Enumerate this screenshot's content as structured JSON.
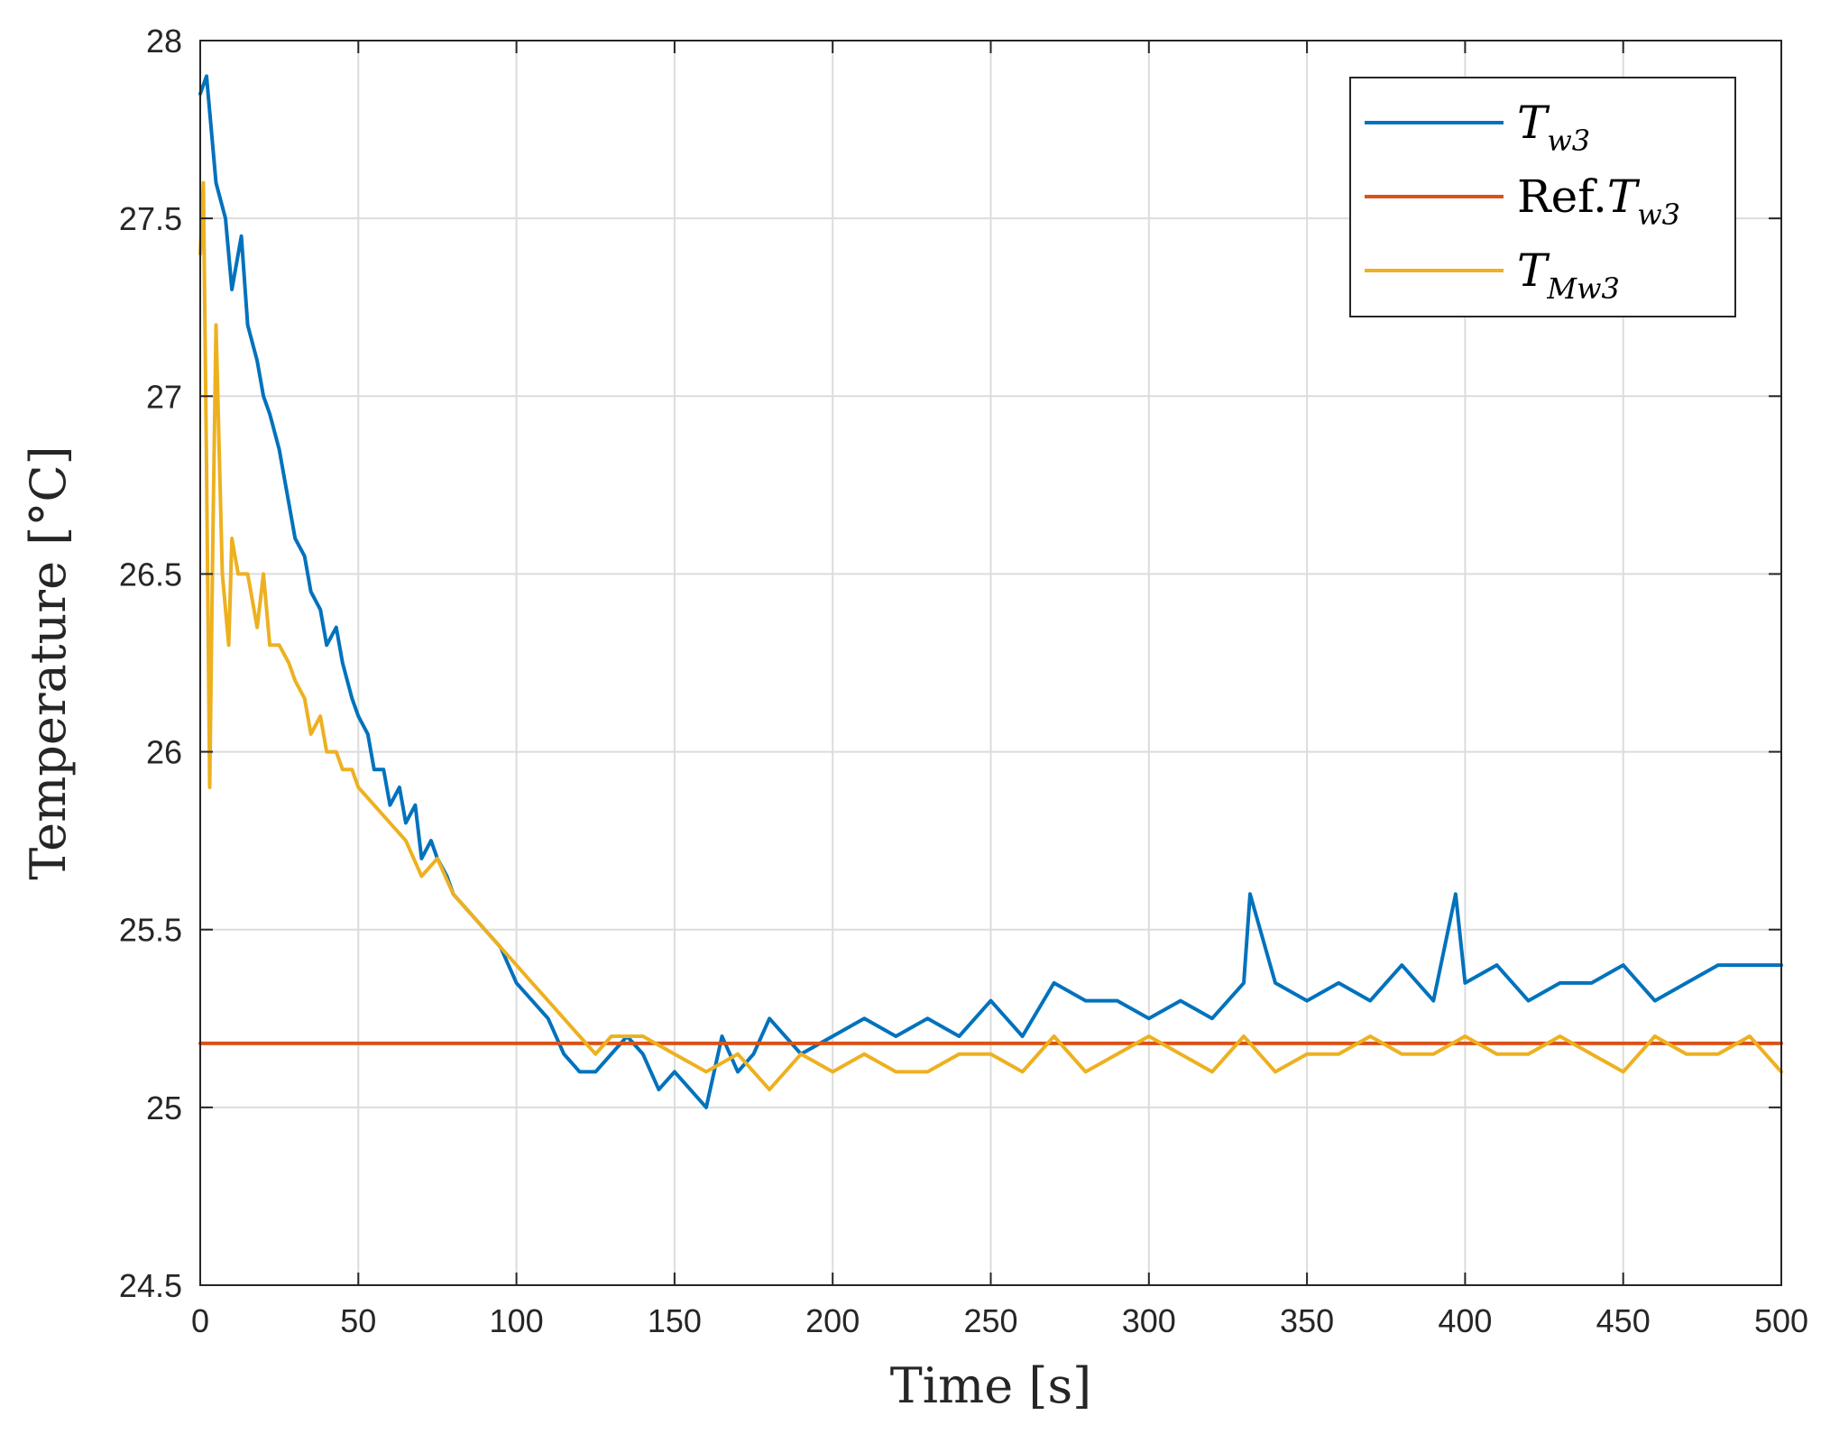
{
  "chart_data": {
    "type": "line",
    "title": "",
    "xlabel": "Time [s]",
    "ylabel": "Temperature [°C]",
    "xlim": [
      0,
      500
    ],
    "ylim": [
      24.5,
      28
    ],
    "grid": true,
    "legend_position": "top-right",
    "x_ticks": [
      0,
      50,
      100,
      150,
      200,
      250,
      300,
      350,
      400,
      450,
      500
    ],
    "y_ticks": [
      24.5,
      25,
      25.5,
      26,
      26.5,
      27,
      27.5,
      28
    ],
    "x_tick_labels": [
      "0",
      "50",
      "100",
      "150",
      "200",
      "250",
      "300",
      "350",
      "400",
      "450",
      "500"
    ],
    "y_tick_labels": [
      "24.5",
      "25",
      "25.5",
      "26",
      "26.5",
      "27",
      "27.5",
      "28"
    ],
    "series": [
      {
        "name": "T_w3",
        "legend": {
          "prefix": "",
          "main": "T",
          "sub": "w3"
        },
        "color": "#0072BD",
        "x": [
          0,
          2,
          5,
          8,
          10,
          13,
          15,
          18,
          20,
          22,
          25,
          28,
          30,
          33,
          35,
          38,
          40,
          43,
          45,
          48,
          50,
          53,
          55,
          58,
          60,
          63,
          65,
          68,
          70,
          73,
          75,
          78,
          80,
          85,
          90,
          95,
          100,
          105,
          110,
          115,
          120,
          125,
          130,
          135,
          140,
          145,
          150,
          155,
          160,
          165,
          170,
          175,
          180,
          190,
          200,
          210,
          220,
          230,
          240,
          250,
          260,
          270,
          280,
          290,
          300,
          310,
          320,
          330,
          332,
          340,
          350,
          360,
          370,
          380,
          390,
          397,
          400,
          410,
          420,
          430,
          440,
          450,
          460,
          470,
          480,
          490,
          500
        ],
        "y": [
          27.85,
          27.9,
          27.6,
          27.5,
          27.3,
          27.45,
          27.2,
          27.1,
          27.0,
          26.95,
          26.85,
          26.7,
          26.6,
          26.55,
          26.45,
          26.4,
          26.3,
          26.35,
          26.25,
          26.15,
          26.1,
          26.05,
          25.95,
          25.95,
          25.85,
          25.9,
          25.8,
          25.85,
          25.7,
          25.75,
          25.7,
          25.65,
          25.6,
          25.55,
          25.5,
          25.45,
          25.35,
          25.3,
          25.25,
          25.15,
          25.1,
          25.1,
          25.15,
          25.2,
          25.15,
          25.05,
          25.1,
          25.05,
          25.0,
          25.2,
          25.1,
          25.15,
          25.25,
          25.15,
          25.2,
          25.25,
          25.2,
          25.25,
          25.2,
          25.3,
          25.2,
          25.35,
          25.3,
          25.3,
          25.25,
          25.3,
          25.25,
          25.35,
          25.6,
          25.35,
          25.3,
          25.35,
          25.3,
          25.4,
          25.3,
          25.6,
          25.35,
          25.4,
          25.3,
          25.35,
          25.35,
          25.4,
          25.3,
          25.35,
          25.4,
          25.4,
          25.4
        ]
      },
      {
        "name": "Ref.T_w3",
        "legend": {
          "prefix": "Ref.",
          "main": "T",
          "sub": "w3"
        },
        "color": "#D95319",
        "x": [
          0,
          500
        ],
        "y": [
          25.18,
          25.18
        ]
      },
      {
        "name": "T_Mw3",
        "legend": {
          "prefix": "",
          "main": "T",
          "sub": "Mw3"
        },
        "color": "#EDB120",
        "x": [
          0,
          1,
          2,
          3,
          4,
          5,
          7,
          9,
          10,
          12,
          15,
          18,
          20,
          22,
          25,
          28,
          30,
          33,
          35,
          38,
          40,
          43,
          45,
          48,
          50,
          55,
          60,
          65,
          70,
          75,
          80,
          85,
          90,
          95,
          100,
          105,
          110,
          115,
          120,
          125,
          130,
          140,
          150,
          160,
          170,
          180,
          190,
          200,
          210,
          220,
          230,
          240,
          250,
          260,
          270,
          280,
          290,
          300,
          310,
          320,
          330,
          340,
          350,
          360,
          370,
          380,
          390,
          400,
          410,
          420,
          430,
          440,
          450,
          460,
          470,
          480,
          490,
          500
        ],
        "y": [
          27.4,
          27.6,
          26.8,
          25.9,
          26.6,
          27.2,
          26.5,
          26.3,
          26.6,
          26.5,
          26.5,
          26.35,
          26.5,
          26.3,
          26.3,
          26.25,
          26.2,
          26.15,
          26.05,
          26.1,
          26.0,
          26.0,
          25.95,
          25.95,
          25.9,
          25.85,
          25.8,
          25.75,
          25.65,
          25.7,
          25.6,
          25.55,
          25.5,
          25.45,
          25.4,
          25.35,
          25.3,
          25.25,
          25.2,
          25.15,
          25.2,
          25.2,
          25.15,
          25.1,
          25.15,
          25.05,
          25.15,
          25.1,
          25.15,
          25.1,
          25.1,
          25.15,
          25.15,
          25.1,
          25.2,
          25.1,
          25.15,
          25.2,
          25.15,
          25.1,
          25.2,
          25.1,
          25.15,
          25.15,
          25.2,
          25.15,
          25.15,
          25.2,
          25.15,
          25.15,
          25.2,
          25.15,
          25.1,
          25.2,
          25.15,
          25.15,
          25.2,
          25.1
        ]
      }
    ]
  }
}
